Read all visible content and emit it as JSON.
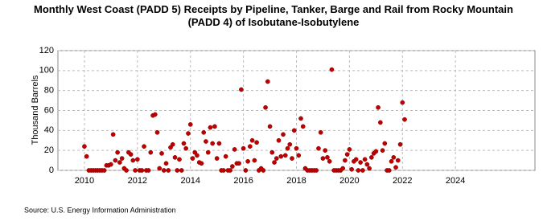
{
  "chart_data": {
    "type": "scatter",
    "title": "Monthly West Coast (PADD 5) Receipts by Pipeline, Tanker, Barge and Rail from Rocky Mountain (PADD 4) of Isobutane-Isobutylene",
    "y_label": "Thousand Barrels",
    "source": "Source: U.S. Energy Information Administration",
    "xlim": [
      2009,
      2027
    ],
    "xticks": [
      2010,
      2012,
      2014,
      2016,
      2018,
      2020,
      2022,
      2024
    ],
    "ylim": [
      0,
      120
    ],
    "yticks": [
      0,
      20,
      40,
      60,
      80,
      100,
      120
    ],
    "grid": true,
    "color": "#c00000",
    "x": [
      2010,
      2010.083,
      2010.167,
      2010.25,
      2010.333,
      2010.417,
      2010.5,
      2010.583,
      2010.667,
      2010.75,
      2010.833,
      2010.917,
      2011,
      2011.083,
      2011.167,
      2011.25,
      2011.333,
      2011.417,
      2011.5,
      2011.583,
      2011.667,
      2011.75,
      2011.833,
      2011.917,
      2012,
      2012.083,
      2012.167,
      2012.25,
      2012.333,
      2012.417,
      2012.5,
      2012.583,
      2012.667,
      2012.75,
      2012.833,
      2012.917,
      2013,
      2013.083,
      2013.167,
      2013.25,
      2013.333,
      2013.417,
      2013.5,
      2013.583,
      2013.667,
      2013.75,
      2013.833,
      2013.917,
      2014,
      2014.083,
      2014.167,
      2014.25,
      2014.333,
      2014.417,
      2014.5,
      2014.583,
      2014.667,
      2014.75,
      2014.833,
      2014.917,
      2015,
      2015.083,
      2015.167,
      2015.25,
      2015.333,
      2015.417,
      2015.5,
      2015.583,
      2015.667,
      2015.75,
      2015.833,
      2015.917,
      2016,
      2016.083,
      2016.167,
      2016.25,
      2016.333,
      2016.417,
      2016.5,
      2016.583,
      2016.667,
      2016.75,
      2016.833,
      2016.917,
      2017,
      2017.083,
      2017.167,
      2017.25,
      2017.333,
      2017.417,
      2017.5,
      2017.583,
      2017.667,
      2017.75,
      2017.833,
      2017.917,
      2018,
      2018.083,
      2018.167,
      2018.25,
      2018.333,
      2018.417,
      2018.5,
      2018.583,
      2018.667,
      2018.75,
      2018.833,
      2018.917,
      2019,
      2019.083,
      2019.167,
      2019.25,
      2019.333,
      2019.417,
      2019.5,
      2019.583,
      2019.667,
      2019.75,
      2019.833,
      2019.917,
      2020,
      2020.083,
      2020.167,
      2020.25,
      2020.333,
      2020.417,
      2020.5,
      2020.583,
      2020.667,
      2020.75,
      2020.833,
      2020.917,
      2021,
      2021.083,
      2021.167,
      2021.25,
      2021.333,
      2021.417,
      2021.5,
      2021.583,
      2021.667,
      2021.75,
      2021.833,
      2021.917,
      2022,
      2022.083
    ],
    "values": [
      24,
      14,
      0,
      0,
      0,
      0,
      0,
      0,
      0,
      0,
      5,
      5,
      6,
      36,
      10,
      18,
      8,
      12,
      2,
      0,
      18,
      16,
      10,
      0,
      11,
      0,
      0,
      24,
      0,
      0,
      18,
      55,
      56,
      38,
      2,
      17,
      0,
      7,
      0,
      23,
      26,
      13,
      0,
      11,
      0,
      27,
      22,
      37,
      46,
      12,
      18,
      15,
      8,
      7,
      38,
      29,
      18,
      43,
      27,
      44,
      12,
      27,
      0,
      0,
      14,
      0,
      0,
      4,
      21,
      7,
      7,
      81,
      22,
      0,
      9,
      24,
      30,
      10,
      28,
      0,
      2,
      0,
      63,
      89,
      44,
      18,
      8,
      12,
      30,
      14,
      36,
      15,
      22,
      26,
      12,
      40,
      22,
      15,
      52,
      44,
      2,
      0,
      0,
      0,
      0,
      0,
      22,
      38,
      12,
      20,
      13,
      9,
      101,
      0,
      0,
      0,
      0,
      2,
      10,
      16,
      21,
      1,
      9,
      11,
      0,
      8,
      0,
      11,
      6,
      2,
      13,
      17,
      19,
      63,
      48,
      20,
      27,
      0,
      0,
      9,
      13,
      3,
      10,
      26,
      68,
      51
    ]
  }
}
